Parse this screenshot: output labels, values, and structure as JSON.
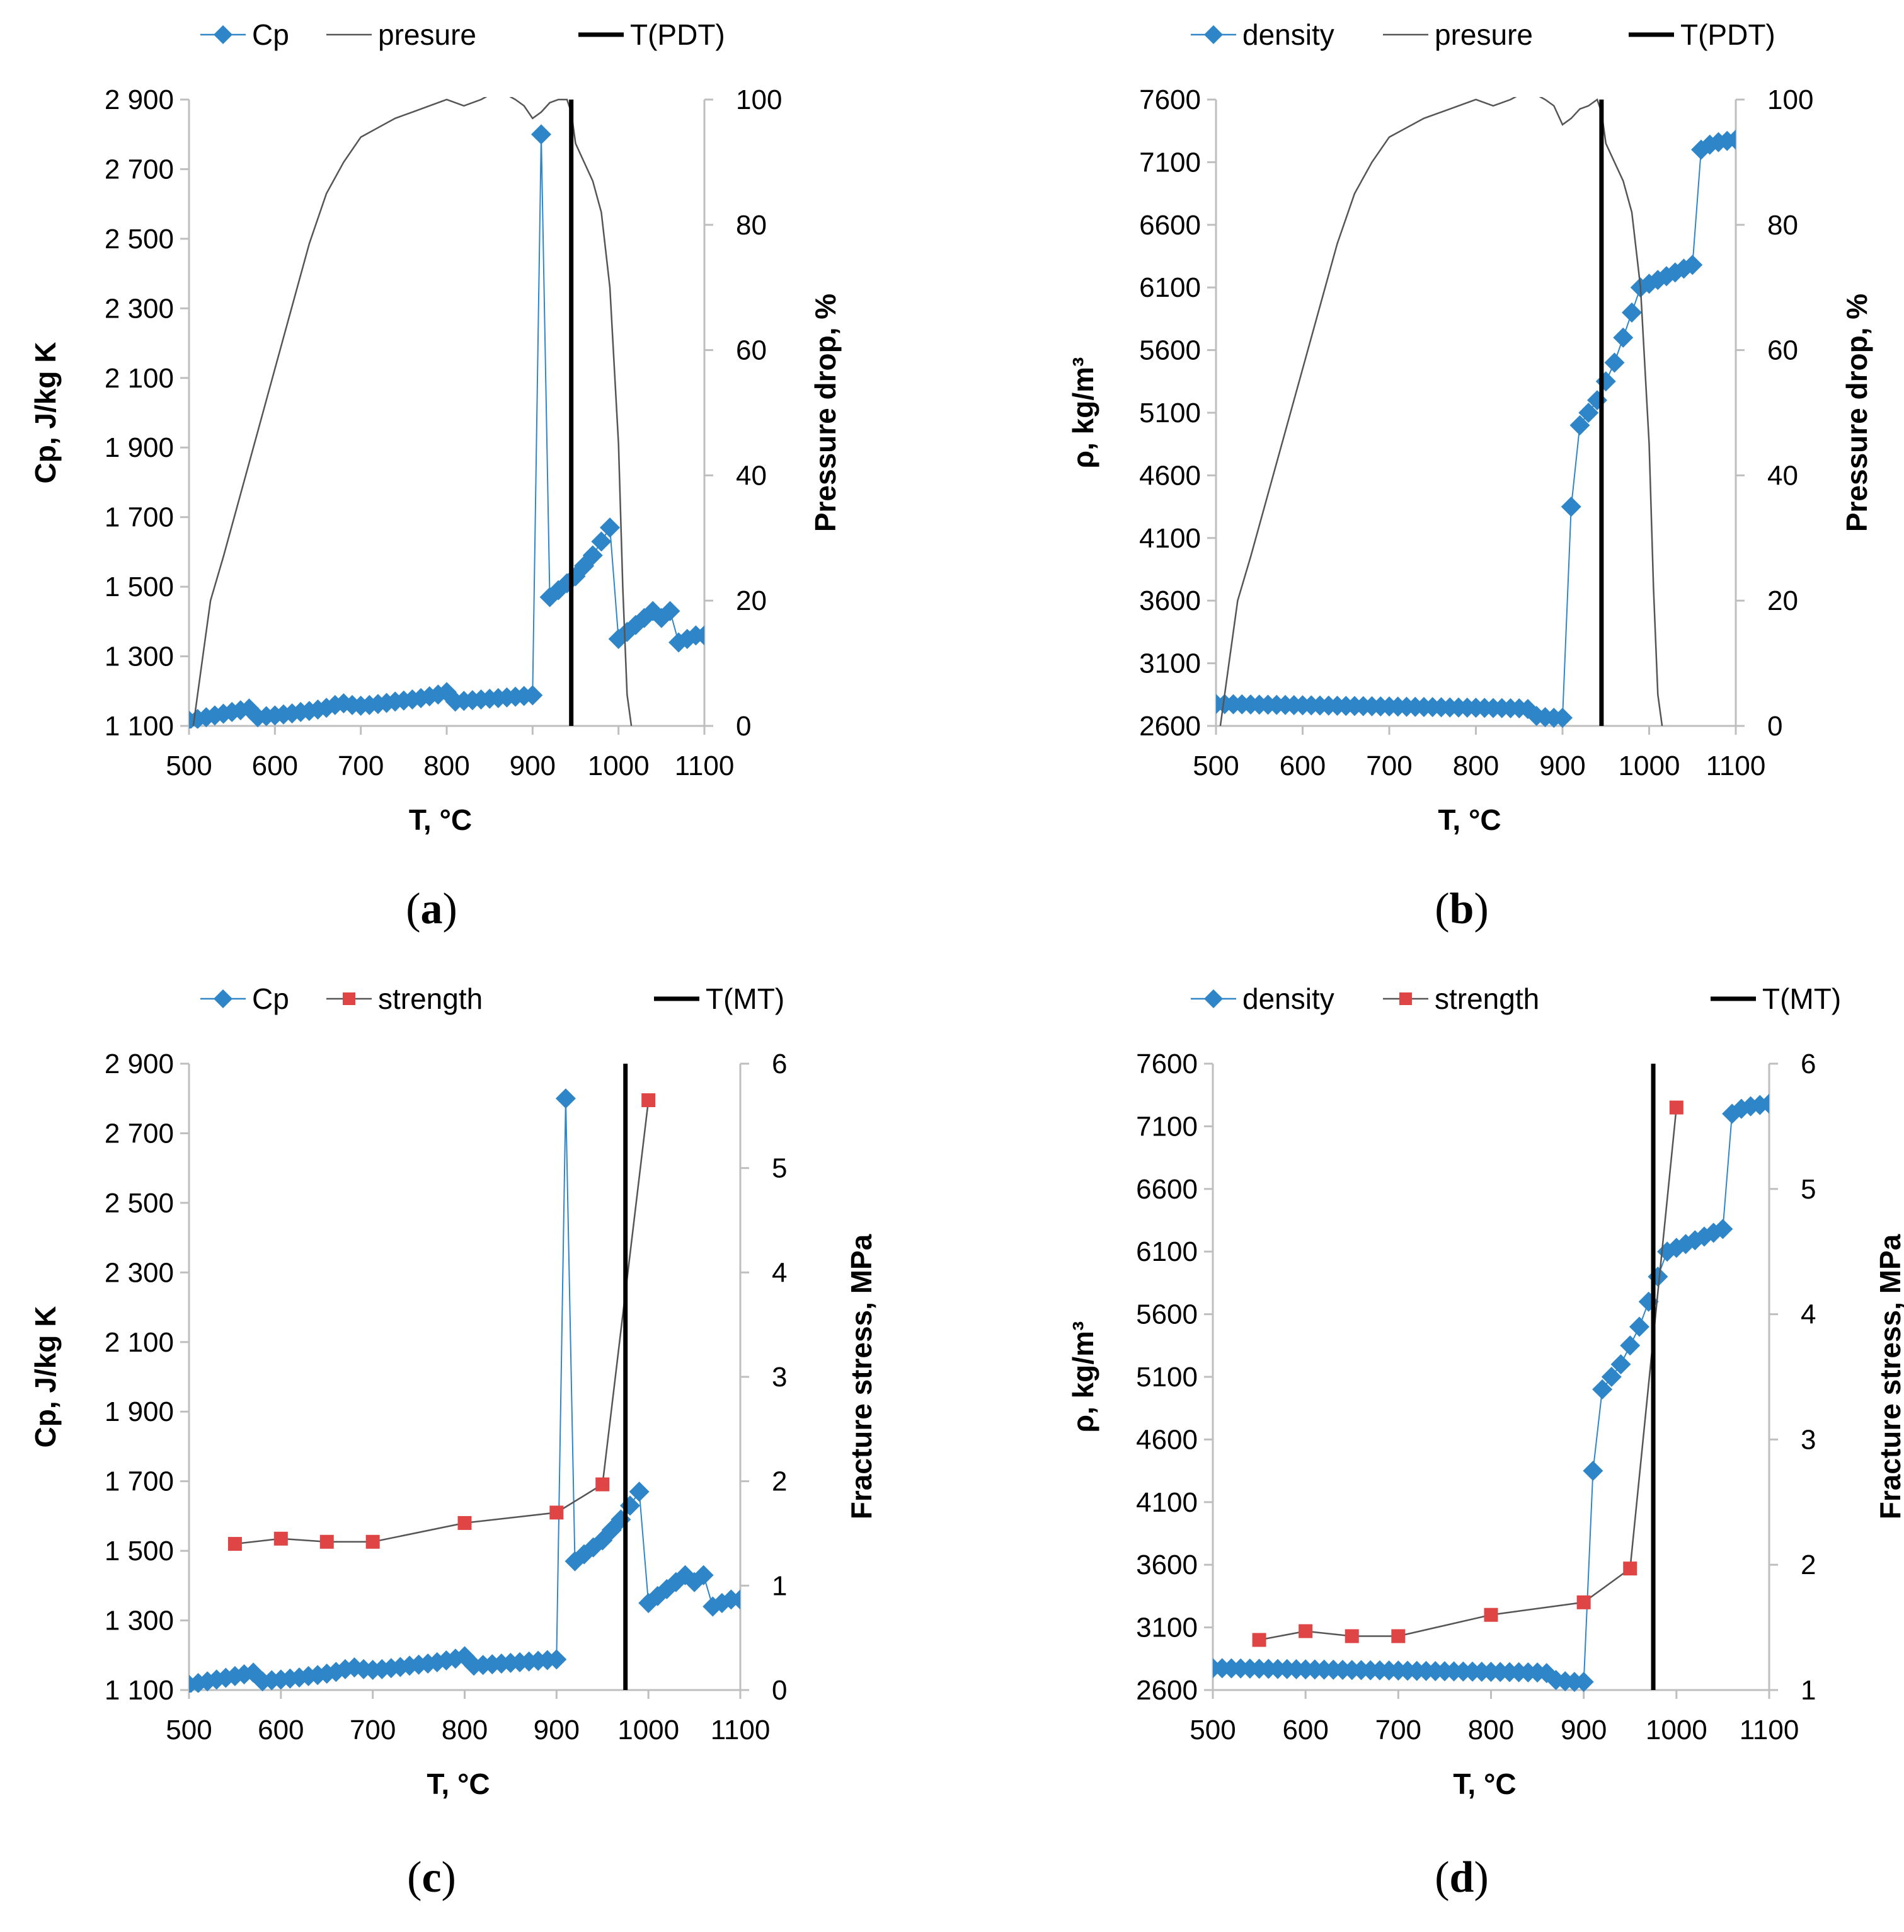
{
  "colors": {
    "marker_blue": "#2E86C8",
    "marker_red": "#E04545",
    "line_gray": "#555555",
    "axis": "#BFBFBF",
    "text": "#000000"
  },
  "chart_data": [
    {
      "type": "line",
      "caption": "a",
      "xlabel": "T, °C",
      "ylabel_left": "Cp, J/kg K",
      "ylabel_right": "Pressure drop, %",
      "xlim": [
        500,
        1100
      ],
      "xticks": [
        500,
        600,
        700,
        800,
        900,
        1000,
        1100
      ],
      "ylim_left": [
        1100,
        2900
      ],
      "yticks_left": [
        1100,
        1300,
        1500,
        1700,
        1900,
        2100,
        2300,
        2500,
        2700,
        2900
      ],
      "yticks_left_labels": [
        "1 100",
        "1 300",
        "1 500",
        "1 700",
        "1 900",
        "2 100",
        "2 300",
        "2 500",
        "2 700",
        "2 900"
      ],
      "ylim_right": [
        0,
        100
      ],
      "yticks_right": [
        0,
        20,
        40,
        60,
        80,
        100
      ],
      "legend": [
        "Cp",
        "presure",
        "T(PDT)"
      ],
      "series": [
        {
          "name": "Cp",
          "axis": "left",
          "style": "diamond",
          "x": [
            500,
            510,
            520,
            530,
            540,
            550,
            560,
            570,
            580,
            590,
            600,
            610,
            620,
            630,
            640,
            650,
            660,
            670,
            680,
            690,
            700,
            710,
            720,
            730,
            740,
            750,
            760,
            770,
            780,
            790,
            800,
            810,
            820,
            830,
            840,
            850,
            860,
            870,
            880,
            890,
            900,
            910,
            920,
            930,
            940,
            950,
            960,
            970,
            980,
            990,
            1000,
            1010,
            1020,
            1030,
            1040,
            1050,
            1060,
            1070,
            1080,
            1090,
            1100
          ],
          "y": [
            1115,
            1120,
            1125,
            1130,
            1135,
            1140,
            1145,
            1150,
            1125,
            1128,
            1130,
            1133,
            1136,
            1140,
            1143,
            1147,
            1152,
            1160,
            1165,
            1160,
            1158,
            1160,
            1163,
            1166,
            1170,
            1173,
            1176,
            1180,
            1185,
            1190,
            1197,
            1170,
            1172,
            1174,
            1176,
            1178,
            1180,
            1182,
            1184,
            1186,
            1188,
            2800,
            1470,
            1490,
            1510,
            1530,
            1560,
            1590,
            1630,
            1670,
            1350,
            1370,
            1390,
            1410,
            1430,
            1410,
            1430,
            1340,
            1350,
            1360,
            1360
          ]
        },
        {
          "name": "presure",
          "axis": "right",
          "style": "line",
          "x": [
            505,
            515,
            525,
            540,
            560,
            580,
            600,
            620,
            640,
            660,
            680,
            700,
            720,
            740,
            760,
            780,
            800,
            820,
            840,
            860,
            880,
            890,
            900,
            910,
            920,
            930,
            940,
            945,
            950,
            960,
            970,
            980,
            990,
            1000,
            1005,
            1010,
            1015
          ],
          "y": [
            0,
            10,
            20,
            27,
            37,
            47,
            57,
            67,
            77,
            85,
            90,
            94,
            95.5,
            97,
            98,
            99,
            100,
            99,
            100,
            101.5,
            100,
            99,
            97,
            98,
            99.5,
            100,
            100,
            98,
            93,
            90,
            87,
            82,
            70,
            45,
            22,
            5,
            0
          ]
        },
        {
          "name": "T(PDT)",
          "axis": "vertical",
          "style": "vline",
          "x": [
            945
          ]
        }
      ]
    },
    {
      "type": "line",
      "caption": "b",
      "xlabel": "T, °C",
      "ylabel_left": "ρ, kg/m³",
      "ylabel_right": "Pressure drop, %",
      "xlim": [
        500,
        1100
      ],
      "xticks": [
        500,
        600,
        700,
        800,
        900,
        1000,
        1100
      ],
      "ylim_left": [
        2600,
        7600
      ],
      "yticks_left": [
        2600,
        3100,
        3600,
        4100,
        4600,
        5100,
        5600,
        6100,
        6600,
        7100,
        7600
      ],
      "yticks_left_labels": [
        "2600",
        "3100",
        "3600",
        "4100",
        "4600",
        "5100",
        "5600",
        "6100",
        "6600",
        "7100",
        "7600"
      ],
      "ylim_right": [
        0,
        100
      ],
      "yticks_right": [
        0,
        20,
        40,
        60,
        80,
        100
      ],
      "legend": [
        "density",
        "presure",
        "T(PDT)"
      ],
      "series": [
        {
          "name": "density",
          "axis": "left",
          "style": "diamond",
          "x": [
            500,
            510,
            520,
            530,
            540,
            550,
            560,
            570,
            580,
            590,
            600,
            610,
            620,
            630,
            640,
            650,
            660,
            670,
            680,
            690,
            700,
            710,
            720,
            730,
            740,
            750,
            760,
            770,
            780,
            790,
            800,
            810,
            820,
            830,
            840,
            850,
            860,
            870,
            880,
            890,
            900,
            910,
            920,
            930,
            940,
            950,
            960,
            970,
            980,
            990,
            1000,
            1010,
            1020,
            1030,
            1040,
            1050,
            1060,
            1070,
            1080,
            1090,
            1100
          ],
          "y": [
            2775,
            2774,
            2773,
            2772,
            2771,
            2770,
            2769,
            2768,
            2767,
            2766,
            2765,
            2764,
            2763,
            2762,
            2761,
            2760,
            2759,
            2758,
            2757,
            2756,
            2755,
            2754,
            2753,
            2752,
            2751,
            2750,
            2749,
            2748,
            2747,
            2746,
            2745,
            2744,
            2743,
            2742,
            2741,
            2740,
            2735,
            2680,
            2670,
            2665,
            2665,
            4350,
            5000,
            5100,
            5200,
            5350,
            5500,
            5700,
            5900,
            6100,
            6130,
            6160,
            6190,
            6220,
            6250,
            6280,
            7200,
            7240,
            7260,
            7270,
            7280
          ]
        },
        {
          "name": "presure",
          "axis": "right",
          "style": "line",
          "x": [
            505,
            515,
            525,
            540,
            560,
            580,
            600,
            620,
            640,
            660,
            680,
            700,
            720,
            740,
            760,
            780,
            800,
            820,
            840,
            860,
            880,
            890,
            900,
            910,
            920,
            930,
            940,
            945,
            950,
            960,
            970,
            980,
            990,
            1000,
            1005,
            1010,
            1015
          ],
          "y": [
            0,
            10,
            20,
            27,
            37,
            47,
            57,
            67,
            77,
            85,
            90,
            94,
            95.5,
            97,
            98,
            99,
            100,
            99,
            100,
            101.5,
            100,
            99,
            96,
            97,
            98.5,
            99,
            100,
            98,
            93,
            90,
            87,
            82,
            70,
            45,
            22,
            5,
            0
          ]
        },
        {
          "name": "T(PDT)",
          "axis": "vertical",
          "style": "vline",
          "x": [
            945
          ]
        }
      ]
    },
    {
      "type": "line",
      "caption": "c",
      "xlabel": "T, °C",
      "ylabel_left": "Cp, J/kg K",
      "ylabel_right": "Fracture stress, MPa",
      "xlim": [
        500,
        1100
      ],
      "xticks": [
        500,
        600,
        700,
        800,
        900,
        1000,
        1100
      ],
      "ylim_left": [
        1100,
        2900
      ],
      "yticks_left": [
        1100,
        1300,
        1500,
        1700,
        1900,
        2100,
        2300,
        2500,
        2700,
        2900
      ],
      "yticks_left_labels": [
        "1 100",
        "1 300",
        "1 500",
        "1 700",
        "1 900",
        "2 100",
        "2 300",
        "2 500",
        "2 700",
        "2 900"
      ],
      "ylim_right": [
        0,
        6
      ],
      "yticks_right": [
        0,
        1,
        2,
        3,
        4,
        5,
        6
      ],
      "legend": [
        "Cp",
        "strength",
        "T(MT)"
      ],
      "series": [
        {
          "name": "Cp",
          "axis": "left",
          "style": "diamond",
          "x": [
            500,
            510,
            520,
            530,
            540,
            550,
            560,
            570,
            580,
            590,
            600,
            610,
            620,
            630,
            640,
            650,
            660,
            670,
            680,
            690,
            700,
            710,
            720,
            730,
            740,
            750,
            760,
            770,
            780,
            790,
            800,
            810,
            820,
            830,
            840,
            850,
            860,
            870,
            880,
            890,
            900,
            910,
            920,
            930,
            940,
            950,
            960,
            970,
            980,
            990,
            1000,
            1010,
            1020,
            1030,
            1040,
            1050,
            1060,
            1070,
            1080,
            1090,
            1100
          ],
          "y": [
            1115,
            1120,
            1125,
            1130,
            1135,
            1140,
            1145,
            1150,
            1125,
            1128,
            1130,
            1133,
            1136,
            1140,
            1143,
            1147,
            1152,
            1160,
            1165,
            1160,
            1158,
            1160,
            1163,
            1166,
            1170,
            1173,
            1176,
            1180,
            1185,
            1190,
            1197,
            1170,
            1172,
            1174,
            1176,
            1178,
            1180,
            1182,
            1184,
            1186,
            1188,
            2800,
            1470,
            1490,
            1510,
            1530,
            1560,
            1590,
            1630,
            1670,
            1350,
            1370,
            1390,
            1410,
            1430,
            1410,
            1430,
            1340,
            1350,
            1360,
            1360
          ]
        },
        {
          "name": "strength",
          "axis": "right",
          "style": "square",
          "x": [
            550,
            600,
            650,
            700,
            800,
            900,
            950,
            1000
          ],
          "y": [
            1.4,
            1.45,
            1.42,
            1.42,
            1.6,
            1.7,
            1.97,
            5.65
          ]
        },
        {
          "name": "T(MT)",
          "axis": "vertical",
          "style": "vline",
          "x": [
            975
          ]
        }
      ]
    },
    {
      "type": "line",
      "caption": "d",
      "xlabel": "T, °C",
      "ylabel_left": "ρ, kg/m³",
      "ylabel_right": "Fracture stress, MPa",
      "xlim": [
        500,
        1100
      ],
      "xticks": [
        500,
        600,
        700,
        800,
        900,
        1000,
        1100
      ],
      "ylim_left": [
        2600,
        7600
      ],
      "yticks_left": [
        2600,
        3100,
        3600,
        4100,
        4600,
        5100,
        5600,
        6100,
        6600,
        7100,
        7600
      ],
      "yticks_left_labels": [
        "2600",
        "3100",
        "3600",
        "4100",
        "4600",
        "5100",
        "5600",
        "6100",
        "6600",
        "7100",
        "7600"
      ],
      "ylim_right": [
        1,
        6
      ],
      "yticks_right": [
        1,
        2,
        3,
        4,
        5,
        6
      ],
      "legend": [
        "density",
        "strength",
        "T(MT)"
      ],
      "series": [
        {
          "name": "density",
          "axis": "left",
          "style": "diamond",
          "x": [
            500,
            510,
            520,
            530,
            540,
            550,
            560,
            570,
            580,
            590,
            600,
            610,
            620,
            630,
            640,
            650,
            660,
            670,
            680,
            690,
            700,
            710,
            720,
            730,
            740,
            750,
            760,
            770,
            780,
            790,
            800,
            810,
            820,
            830,
            840,
            850,
            860,
            870,
            880,
            890,
            900,
            910,
            920,
            930,
            940,
            950,
            960,
            970,
            980,
            990,
            1000,
            1010,
            1020,
            1030,
            1040,
            1050,
            1060,
            1070,
            1080,
            1090,
            1100
          ],
          "y": [
            2775,
            2774,
            2773,
            2772,
            2771,
            2770,
            2769,
            2768,
            2767,
            2766,
            2765,
            2764,
            2763,
            2762,
            2761,
            2760,
            2759,
            2758,
            2757,
            2756,
            2755,
            2754,
            2753,
            2752,
            2751,
            2750,
            2749,
            2748,
            2747,
            2746,
            2745,
            2744,
            2743,
            2742,
            2741,
            2740,
            2735,
            2680,
            2670,
            2665,
            2665,
            4350,
            5000,
            5100,
            5200,
            5350,
            5500,
            5700,
            5900,
            6100,
            6130,
            6160,
            6190,
            6220,
            6250,
            6280,
            7200,
            7240,
            7260,
            7270,
            7280
          ]
        },
        {
          "name": "strength",
          "axis": "right",
          "style": "square",
          "x": [
            550,
            600,
            650,
            700,
            800,
            900,
            950,
            1000
          ],
          "y": [
            1.4,
            1.47,
            1.43,
            1.43,
            1.6,
            1.7,
            1.97,
            5.65
          ]
        },
        {
          "name": "T(MT)",
          "axis": "vertical",
          "style": "vline",
          "x": [
            975
          ]
        }
      ]
    }
  ]
}
